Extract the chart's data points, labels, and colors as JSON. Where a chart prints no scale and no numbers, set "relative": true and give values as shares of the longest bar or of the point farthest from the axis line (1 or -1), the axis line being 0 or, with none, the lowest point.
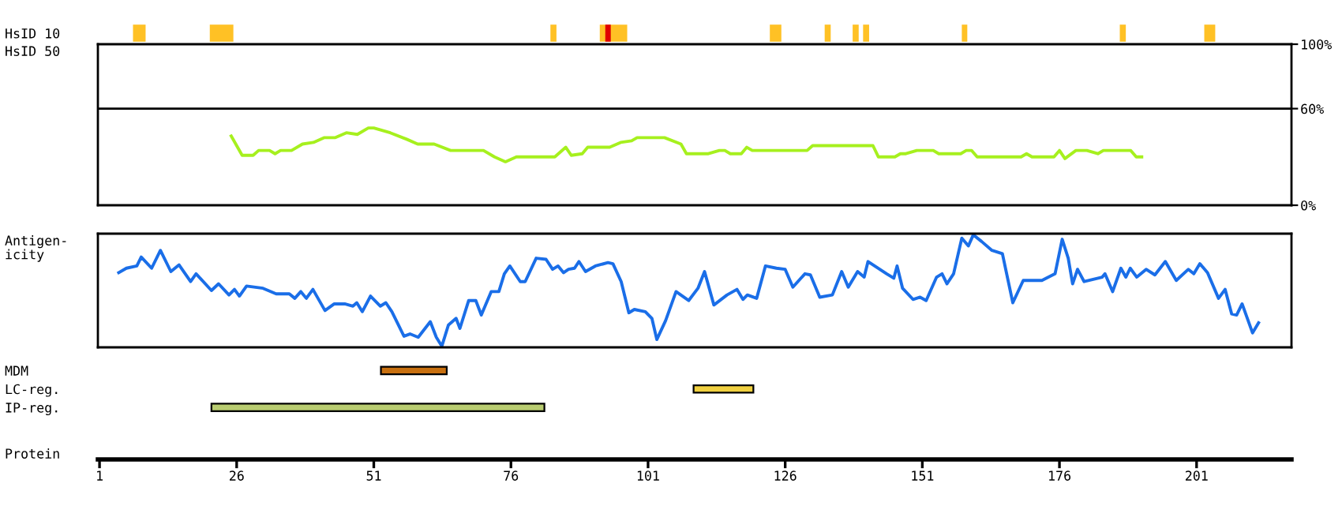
{
  "chart_data": [
    {
      "type": "bar",
      "orientation": "horizontal",
      "categories": [
        "HsID 10"
      ],
      "xlim": [
        0.7,
        218.3
      ],
      "tick_labels": "y",
      "series": [
        {
          "color": "#ffc125",
          "base": [
            7.1
          ],
          "values": [
            2.3
          ]
        },
        {
          "color": "#ffc125",
          "base": [
            21.1
          ],
          "values": [
            4.3
          ]
        },
        {
          "color": "#ffc125",
          "base": [
            83.2
          ],
          "values": [
            1.1
          ]
        },
        {
          "color": "#ffc125",
          "base": [
            92.2
          ],
          "values": [
            5.0
          ]
        },
        {
          "color": "#e00000",
          "base": [
            93.2
          ],
          "values": [
            1.0
          ]
        },
        {
          "color": "#ffc125",
          "base": [
            123.2
          ],
          "values": [
            2.1
          ]
        },
        {
          "color": "#ffc125",
          "base": [
            133.2
          ],
          "values": [
            1.1
          ]
        },
        {
          "color": "#ffc125",
          "base": [
            138.3
          ],
          "values": [
            1.1
          ]
        },
        {
          "color": "#ffc125",
          "base": [
            140.2
          ],
          "values": [
            1.1
          ]
        },
        {
          "color": "#ffc125",
          "base": [
            158.2
          ],
          "values": [
            1.0
          ]
        },
        {
          "color": "#ffc125",
          "base": [
            187.0
          ],
          "values": [
            1.1
          ]
        },
        {
          "color": "#ffc125",
          "base": [
            202.4
          ],
          "values": [
            2.0
          ]
        }
      ]
    },
    {
      "type": "line",
      "ylabel": "HsID 50",
      "xlim": [
        0.7,
        218.3
      ],
      "ylim": [
        0,
        100
      ],
      "yticks": [
        {
          "value": 0,
          "label": "0%"
        },
        {
          "value": 60,
          "label": "60%"
        },
        {
          "value": 100,
          "label": "100%"
        }
      ],
      "tick_labels": "y",
      "ref_lines": [
        {
          "axis": "y",
          "value": 60,
          "label": null
        }
      ],
      "series": [
        {
          "color": "#a6f01e",
          "x": [
            25,
            27,
            29,
            30,
            32,
            33,
            34,
            36,
            38,
            40,
            42,
            44,
            46,
            48,
            50,
            51,
            54,
            57,
            59,
            62,
            65,
            71,
            73,
            75,
            77,
            84,
            86,
            87,
            89,
            90,
            94,
            96,
            98,
            99,
            104,
            107,
            108,
            112,
            114,
            115,
            116,
            118,
            119,
            120,
            130,
            131,
            142,
            143,
            146,
            147,
            148,
            150,
            153,
            154,
            158,
            159,
            160,
            161,
            169,
            170,
            171,
            175,
            176,
            177,
            179,
            181,
            183,
            184,
            189,
            190,
            191
          ],
          "values": [
            43,
            31,
            31,
            34,
            34,
            32,
            34,
            34,
            38,
            39,
            42,
            42,
            45,
            44,
            48,
            48,
            45,
            41,
            38,
            38,
            34,
            34,
            30,
            27,
            30,
            30,
            36,
            31,
            32,
            36,
            36,
            39,
            40,
            42,
            42,
            38,
            32,
            32,
            34,
            34,
            32,
            32,
            36,
            34,
            34,
            37,
            37,
            30,
            30,
            32,
            32,
            34,
            34,
            32,
            32,
            34,
            34,
            30,
            30,
            32,
            30,
            30,
            34,
            29,
            34,
            34,
            32,
            34,
            34,
            30,
            30
          ]
        }
      ]
    },
    {
      "type": "line",
      "ylabel": "Antigen-\nicity",
      "relative": true,
      "xlim": [
        0.7,
        218.3
      ],
      "tick_labels": false,
      "series": [
        {
          "color": "#1a6ee8",
          "x": [
            4.5,
            5.9,
            7.8,
            8.6,
            10.5,
            12.1,
            14.0,
            15.5,
            17.6,
            18.6,
            21.4,
            22.7,
            24.6,
            25.6,
            26.5,
            27.8,
            30.8,
            33.2,
            35.6,
            36.6,
            37.7,
            38.7,
            39.9,
            42.1,
            43.8,
            45.7,
            47.2,
            47.9,
            48.9,
            50.4,
            52.2,
            53.2,
            54.3,
            56.5,
            57.6,
            59.1,
            61.3,
            62.4,
            63.4,
            64.6,
            66.0,
            66.7,
            68.3,
            69.6,
            70.6,
            72.4,
            73.8,
            74.8,
            75.8,
            77.7,
            78.6,
            80.6,
            82.4,
            83.6,
            84.6,
            85.6,
            86.5,
            87.6,
            88.4,
            89.6,
            91.4,
            93.7,
            94.6,
            96.1,
            97.5,
            98.5,
            100.5,
            101.7,
            102.6,
            104.2,
            106.1,
            108.4,
            110.1,
            111.3,
            113.0,
            115.4,
            117.2,
            118.3,
            119.1,
            120.8,
            122.4,
            124.4,
            126.0,
            127.4,
            129.6,
            130.6,
            132.3,
            134.6,
            136.3,
            137.5,
            139.2,
            140.4,
            141.1,
            144.5,
            145.8,
            146.4,
            147.4,
            149.3,
            150.6,
            151.7,
            153.6,
            154.6,
            155.5,
            156.7,
            158.2,
            159.4,
            160.3,
            161.8,
            163.7,
            165.6,
            167.5,
            169.4,
            172.8,
            175.2,
            176.5,
            177.6,
            178.4,
            179.3,
            180.5,
            183.8,
            184.3,
            185.7,
            187.2,
            188.1,
            188.9,
            190.1,
            191.8,
            193.4,
            195.3,
            197.3,
            199.5,
            200.5,
            201.6,
            203.0,
            205.0,
            206.2,
            207.4,
            208.3,
            209.3,
            211.2,
            212.3
          ],
          "values": [
            0.66,
            0.7,
            0.72,
            0.8,
            0.7,
            0.86,
            0.67,
            0.73,
            0.58,
            0.65,
            0.5,
            0.56,
            0.46,
            0.51,
            0.45,
            0.54,
            0.52,
            0.47,
            0.47,
            0.43,
            0.49,
            0.43,
            0.51,
            0.32,
            0.38,
            0.38,
            0.36,
            0.39,
            0.31,
            0.45,
            0.36,
            0.39,
            0.31,
            0.09,
            0.11,
            0.08,
            0.22,
            0.08,
            0.0,
            0.19,
            0.25,
            0.16,
            0.41,
            0.41,
            0.28,
            0.49,
            0.49,
            0.65,
            0.72,
            0.58,
            0.58,
            0.79,
            0.78,
            0.69,
            0.72,
            0.66,
            0.69,
            0.7,
            0.76,
            0.67,
            0.72,
            0.75,
            0.74,
            0.58,
            0.3,
            0.33,
            0.31,
            0.25,
            0.06,
            0.23,
            0.49,
            0.41,
            0.52,
            0.67,
            0.37,
            0.46,
            0.51,
            0.42,
            0.46,
            0.43,
            0.72,
            0.7,
            0.69,
            0.53,
            0.65,
            0.64,
            0.44,
            0.46,
            0.67,
            0.53,
            0.67,
            0.62,
            0.76,
            0.65,
            0.61,
            0.72,
            0.52,
            0.42,
            0.44,
            0.41,
            0.62,
            0.65,
            0.56,
            0.65,
            0.97,
            0.9,
            1.0,
            0.94,
            0.86,
            0.83,
            0.39,
            0.59,
            0.59,
            0.65,
            0.96,
            0.79,
            0.56,
            0.69,
            0.58,
            0.62,
            0.65,
            0.49,
            0.7,
            0.62,
            0.7,
            0.62,
            0.69,
            0.64,
            0.76,
            0.59,
            0.69,
            0.65,
            0.74,
            0.66,
            0.43,
            0.51,
            0.29,
            0.28,
            0.38,
            0.12,
            0.21
          ]
        }
      ]
    },
    {
      "type": "bar",
      "orientation": "horizontal",
      "categories": [
        "MDM",
        "LC-reg.",
        "IP-reg."
      ],
      "base": [
        52.3,
        109.3,
        21.4
      ],
      "values": [
        12.0,
        10.9,
        60.7
      ],
      "colors": [
        "#c87010",
        "#f0d040",
        "#b8cc70"
      ],
      "xlabel": "Protein",
      "xlim": [
        0.7,
        218.3
      ],
      "xticks": [
        1,
        26,
        51,
        76,
        101,
        126,
        151,
        176,
        201
      ]
    }
  ]
}
